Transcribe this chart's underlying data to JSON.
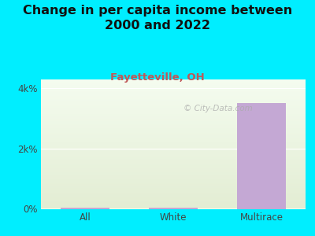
{
  "title": "Change in per capita income between\n2000 and 2022",
  "subtitle": "Fayetteville, OH",
  "categories": [
    "All",
    "White",
    "Multirace"
  ],
  "values": [
    50,
    50,
    3500
  ],
  "bar_color": "#c4a8d4",
  "background_color": "#00EEFF",
  "plot_bg_top": "#e8f0d8",
  "plot_bg_bottom": "#f5faf0",
  "title_fontsize": 11.5,
  "subtitle_fontsize": 9.5,
  "subtitle_color": "#c05858",
  "title_color": "#111111",
  "tick_label_color": "#444444",
  "ylim": [
    0,
    4300
  ],
  "yticks": [
    0,
    2000,
    4000
  ],
  "ytick_labels": [
    "0%",
    "2k%",
    "4k%"
  ],
  "watermark": " City-Data.com",
  "watermark_icon": "@"
}
